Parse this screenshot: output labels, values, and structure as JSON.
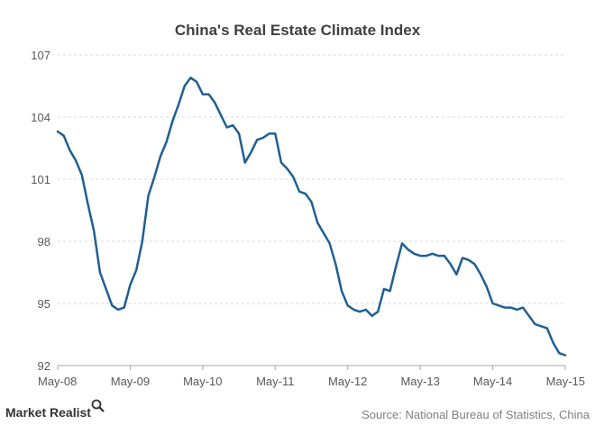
{
  "chart_data": {
    "type": "line",
    "title": "China's Real Estate Climate Index",
    "xlabel": "",
    "ylabel": "",
    "x_tick_labels": [
      "May-08",
      "May-09",
      "May-10",
      "May-11",
      "May-12",
      "May-13",
      "May-14",
      "May-15"
    ],
    "y_ticks": [
      92,
      95,
      98,
      101,
      104,
      107
    ],
    "y_tick_labels": [
      "92",
      "95",
      "98",
      "101",
      "104",
      "107"
    ],
    "ylim": [
      92,
      107
    ],
    "xlim": [
      "2008-05",
      "2015-05"
    ],
    "grid": "horizontal",
    "legend": "none",
    "line_color": "#1f5f93",
    "series": [
      {
        "x": [
          "2008-05",
          "2008-06",
          "2008-07",
          "2008-08",
          "2008-09",
          "2008-10",
          "2008-11",
          "2008-12",
          "2009-01",
          "2009-02",
          "2009-03",
          "2009-04",
          "2009-05",
          "2009-06",
          "2009-07",
          "2009-08",
          "2009-09",
          "2009-10",
          "2009-11",
          "2009-12",
          "2010-01",
          "2010-02",
          "2010-03",
          "2010-04",
          "2010-05",
          "2010-06",
          "2010-07",
          "2010-08",
          "2010-09",
          "2010-10",
          "2010-11",
          "2010-12",
          "2011-01",
          "2011-02",
          "2011-03",
          "2011-04",
          "2011-05",
          "2011-06",
          "2011-07",
          "2011-08",
          "2011-09",
          "2011-10",
          "2011-11",
          "2011-12",
          "2012-01",
          "2012-02",
          "2012-03",
          "2012-04",
          "2012-05",
          "2012-06",
          "2012-07",
          "2012-08",
          "2012-09",
          "2012-10",
          "2012-11",
          "2012-12",
          "2013-01",
          "2013-02",
          "2013-03",
          "2013-04",
          "2013-05",
          "2013-06",
          "2013-07",
          "2013-08",
          "2013-09",
          "2013-10",
          "2013-11",
          "2013-12",
          "2014-01",
          "2014-02",
          "2014-03",
          "2014-04",
          "2014-05",
          "2014-06",
          "2014-07",
          "2014-08",
          "2014-09",
          "2014-10",
          "2014-11",
          "2014-12",
          "2015-01",
          "2015-02",
          "2015-03",
          "2015-04",
          "2015-05"
        ],
        "values": [
          103.3,
          103.1,
          102.4,
          101.9,
          101.2,
          99.8,
          98.5,
          96.5,
          95.7,
          94.9,
          94.7,
          94.8,
          95.9,
          96.6,
          98.0,
          100.2,
          101.1,
          102.1,
          102.8,
          103.8,
          104.6,
          105.5,
          105.9,
          105.7,
          105.1,
          105.1,
          104.7,
          104.1,
          103.5,
          103.6,
          103.2,
          101.8,
          102.3,
          102.9,
          103.0,
          103.2,
          103.2,
          101.8,
          101.5,
          101.1,
          100.4,
          100.3,
          99.9,
          98.9,
          98.4,
          97.9,
          96.9,
          95.6,
          94.9,
          94.7,
          94.6,
          94.7,
          94.4,
          94.6,
          95.7,
          95.6,
          96.8,
          97.9,
          97.6,
          97.4,
          97.3,
          97.3,
          97.4,
          97.3,
          97.3,
          96.9,
          96.4,
          97.2,
          97.1,
          96.9,
          96.4,
          95.8,
          95.0,
          94.9,
          94.8,
          94.8,
          94.7,
          94.8,
          94.4,
          94.0,
          93.9,
          93.8,
          93.1,
          92.6,
          92.5
        ]
      }
    ]
  },
  "footer": {
    "brand": "Market Realist",
    "source": "Source: National Bureau of Statistics, China"
  }
}
